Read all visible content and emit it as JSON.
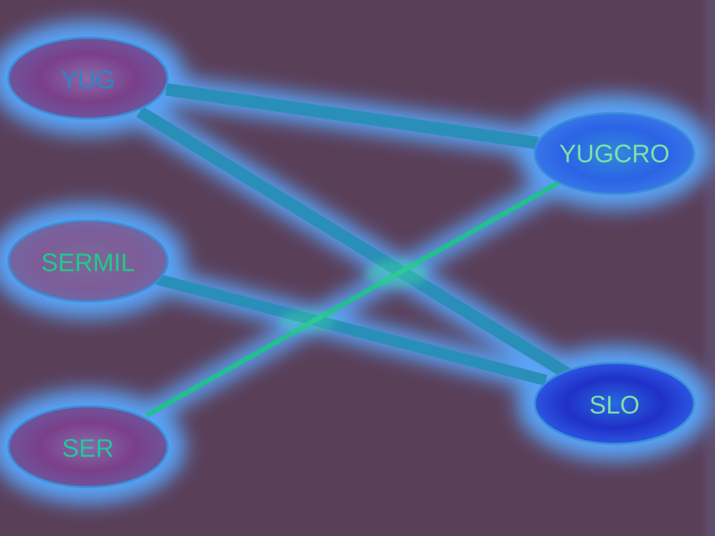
{
  "diagram": {
    "nodes": [
      {
        "id": "YUG",
        "label": "YUG",
        "fill": "#7a3f8a",
        "text_color": "#2a86c9"
      },
      {
        "id": "YUGCRO",
        "label": "YUGCRO",
        "fill": "#2c63e6",
        "text_color": "#7ee0a8"
      },
      {
        "id": "SERMIL",
        "label": "SERMIL",
        "fill": "#7d5c98",
        "text_color": "#21c98c"
      },
      {
        "id": "SER",
        "label": "SER",
        "fill": "#7a3f8a",
        "text_color": "#20c7a0"
      },
      {
        "id": "SLO",
        "label": "SLO",
        "fill": "#2048d8",
        "text_color": "#7ee0a8"
      }
    ],
    "edges": [
      {
        "from": "YUG",
        "to": "YUGCRO",
        "weight": "thick"
      },
      {
        "from": "YUG",
        "to": "SLO",
        "weight": "thick"
      },
      {
        "from": "SERMIL",
        "to": "SLO",
        "weight": "thick"
      },
      {
        "from": "SER",
        "to": "YUGCRO",
        "weight": "thin"
      }
    ],
    "colors": {
      "background": "#5a3f59",
      "edge": "#2a8fb8",
      "glow": "#5aa8ff",
      "node_stroke": "#3a8fd8"
    }
  }
}
